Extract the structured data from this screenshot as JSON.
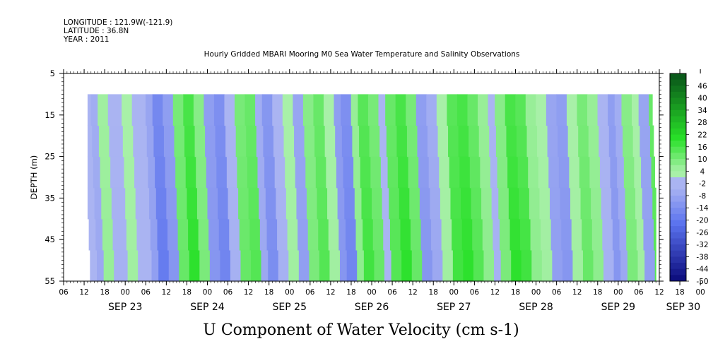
{
  "header": {
    "longitude": "LONGITUDE : 121.9W(-121.9)",
    "latitude": "LATITUDE : 36.8N",
    "year": "YEAR : 2011",
    "title": "Hourly Gridded MBARI Mooring M0 Sea Water Temperature and Salinity Observations"
  },
  "chart_data": {
    "type": "heatmap",
    "title": "U Component of Water Velocity (cm s-1)",
    "ylabel": "DEPTH (m)",
    "xlabel": "",
    "yrange": [
      5,
      55
    ],
    "y_inverted": true,
    "yticks": [
      "5",
      "15",
      "25",
      "35",
      "45",
      "55"
    ],
    "x_range_hours": [
      0,
      174
    ],
    "data_start_hour": 7,
    "data_end_hour": 172,
    "data_top_depth": 10,
    "x_hour_ticks": [
      "06",
      "12",
      "18",
      "00",
      "06",
      "12",
      "18",
      "00",
      "06",
      "12",
      "18",
      "00",
      "06",
      "12",
      "18",
      "00",
      "06",
      "12",
      "18",
      "00",
      "06",
      "12",
      "18",
      "00",
      "06",
      "12",
      "18",
      "00",
      "06",
      "12",
      "18",
      "00",
      "06"
    ],
    "x_day_labels": [
      {
        "label": "SEP 23",
        "hour": 18
      },
      {
        "label": "SEP 24",
        "hour": 42
      },
      {
        "label": "SEP 25",
        "hour": 66
      },
      {
        "label": "SEP 26",
        "hour": 90
      },
      {
        "label": "SEP 27",
        "hour": 114
      },
      {
        "label": "SEP 28",
        "hour": 138
      },
      {
        "label": "SEP 29",
        "hour": 162
      },
      {
        "label": "SEP 30",
        "hour": 181
      }
    ],
    "colorbar_labels": [
      "46",
      "40",
      "34",
      "28",
      "22",
      "16",
      "10",
      "4",
      "-2",
      "-8",
      "-14",
      "-20",
      "-26",
      "-32",
      "-38",
      "-44",
      "-50"
    ],
    "colorbar_range": [
      -50,
      52
    ],
    "colors": {
      "strong_negative": "#0a0a7a",
      "negative": "#5a72ee",
      "weak_negative": "#aab4f2",
      "weak_positive": "#a8f0a8",
      "positive": "#28e028",
      "strong_positive": "#0a5a1a"
    },
    "bands": [
      {
        "hour": 7,
        "value": -2
      },
      {
        "hour": 9,
        "value": -6
      },
      {
        "hour": 11,
        "value": 5
      },
      {
        "hour": 14,
        "value": -4
      },
      {
        "hour": 18,
        "value": 4
      },
      {
        "hour": 21,
        "value": -1
      },
      {
        "hour": 25,
        "value": -8
      },
      {
        "hour": 27,
        "value": -16
      },
      {
        "hour": 30,
        "value": -10
      },
      {
        "hour": 33,
        "value": 10
      },
      {
        "hour": 36,
        "value": 16
      },
      {
        "hour": 39,
        "value": 8
      },
      {
        "hour": 42,
        "value": -10
      },
      {
        "hour": 45,
        "value": -14
      },
      {
        "hour": 48,
        "value": -4
      },
      {
        "hour": 51,
        "value": 10
      },
      {
        "hour": 54,
        "value": 12
      },
      {
        "hour": 57,
        "value": -6
      },
      {
        "hour": 59,
        "value": -12
      },
      {
        "hour": 62,
        "value": -4
      },
      {
        "hour": 65,
        "value": 4
      },
      {
        "hour": 68,
        "value": -8
      },
      {
        "hour": 71,
        "value": 8
      },
      {
        "hour": 74,
        "value": 12
      },
      {
        "hour": 77,
        "value": 4
      },
      {
        "hour": 80,
        "value": -10
      },
      {
        "hour": 82,
        "value": -14
      },
      {
        "hour": 85,
        "value": 6
      },
      {
        "hour": 87,
        "value": 14
      },
      {
        "hour": 90,
        "value": 10
      },
      {
        "hour": 93,
        "value": -2
      },
      {
        "hour": 95,
        "value": 12
      },
      {
        "hour": 98,
        "value": 16
      },
      {
        "hour": 101,
        "value": 10
      },
      {
        "hour": 104,
        "value": -10
      },
      {
        "hour": 107,
        "value": -6
      },
      {
        "hour": 110,
        "value": 4
      },
      {
        "hour": 113,
        "value": 14
      },
      {
        "hour": 116,
        "value": 16
      },
      {
        "hour": 119,
        "value": 12
      },
      {
        "hour": 122,
        "value": 6
      },
      {
        "hour": 125,
        "value": -4
      },
      {
        "hour": 127,
        "value": 8
      },
      {
        "hour": 130,
        "value": 16
      },
      {
        "hour": 133,
        "value": 14
      },
      {
        "hour": 136,
        "value": 6
      },
      {
        "hour": 139,
        "value": 4
      },
      {
        "hour": 142,
        "value": -8
      },
      {
        "hour": 145,
        "value": -10
      },
      {
        "hour": 148,
        "value": 4
      },
      {
        "hour": 151,
        "value": 10
      },
      {
        "hour": 154,
        "value": 6
      },
      {
        "hour": 157,
        "value": -4
      },
      {
        "hour": 160,
        "value": -10
      },
      {
        "hour": 162,
        "value": -6
      },
      {
        "hour": 164,
        "value": 8
      },
      {
        "hour": 167,
        "value": 4
      },
      {
        "hour": 169,
        "value": -8
      },
      {
        "hour": 172,
        "value": 12
      }
    ]
  }
}
